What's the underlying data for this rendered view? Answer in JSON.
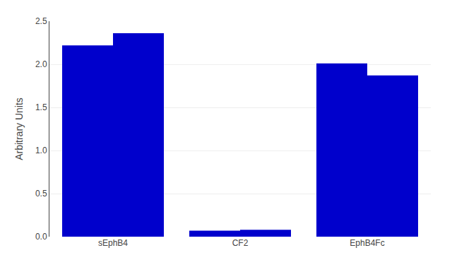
{
  "chart_data": {
    "type": "bar",
    "categories": [
      "sEphB4",
      "CF2",
      "EphB4Fc"
    ],
    "series": [
      {
        "color": "#0000CC",
        "values": [
          2.22,
          0.07,
          2.01
        ]
      },
      {
        "color": "#0000CC",
        "values": [
          2.36,
          0.08,
          1.87
        ]
      }
    ],
    "ylabel": "Arbitrary Units",
    "ylim": [
      0,
      2.5
    ],
    "yticks": [
      {
        "value": 0,
        "label": "0.0"
      },
      0.5,
      {
        "value": 1,
        "label": "1.0"
      },
      1.5,
      {
        "value": 2,
        "label": "2.0"
      },
      2.5
    ],
    "grid": true
  }
}
